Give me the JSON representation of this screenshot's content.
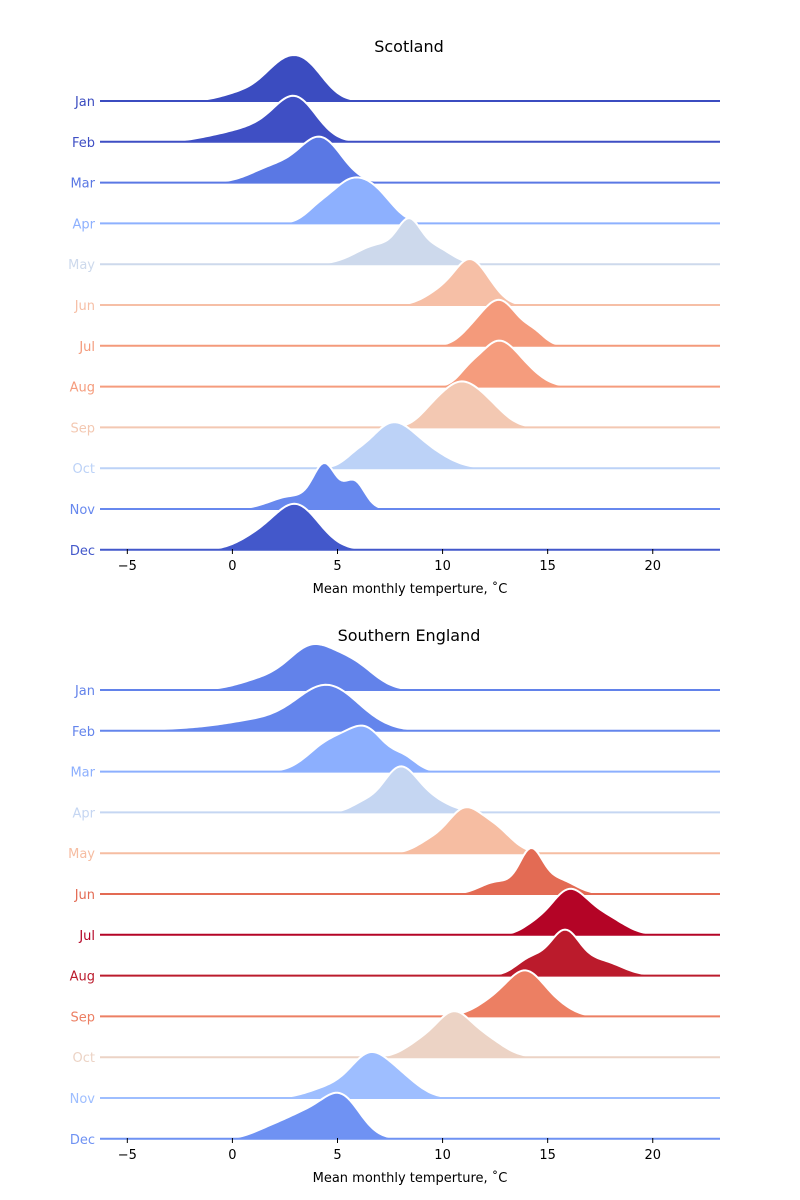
{
  "chart_data": [
    {
      "type": "ridgeline",
      "title": "Scotland",
      "xlabel": "Mean monthly temperture, ˚C",
      "xlim": [
        -6.3,
        23.2
      ],
      "xticks": [
        -5,
        0,
        5,
        10,
        15,
        20
      ],
      "xtick_labels": [
        "−5",
        "0",
        "5",
        "10",
        "15",
        "20"
      ],
      "rows": [
        {
          "name": "Jan",
          "color": "#3b4cc0",
          "components": [
            {
              "mean": 2.6,
              "sd": 1.1,
              "weight": 1.0
            },
            {
              "mean": 0.2,
              "sd": 0.9,
              "weight": 0.15
            },
            {
              "mean": 3.8,
              "sd": 0.8,
              "weight": 0.35
            }
          ]
        },
        {
          "name": "Feb",
          "color": "#3f4fc4",
          "components": [
            {
              "mean": 3.0,
              "sd": 1.0,
              "weight": 1.0
            },
            {
              "mean": 1.0,
              "sd": 1.2,
              "weight": 0.3
            },
            {
              "mean": -1.0,
              "sd": 1.0,
              "weight": 0.08
            }
          ]
        },
        {
          "name": "Mar",
          "color": "#5a78e4",
          "components": [
            {
              "mean": 4.2,
              "sd": 1.0,
              "weight": 1.0
            },
            {
              "mean": 2.0,
              "sd": 1.1,
              "weight": 0.35
            }
          ]
        },
        {
          "name": "Apr",
          "color": "#8db0fe",
          "components": [
            {
              "mean": 5.6,
              "sd": 1.0,
              "weight": 1.0
            },
            {
              "mean": 7.0,
              "sd": 0.8,
              "weight": 0.45
            },
            {
              "mean": 4.0,
              "sd": 0.6,
              "weight": 0.2
            }
          ]
        },
        {
          "name": "May",
          "color": "#cdd9ec",
          "components": [
            {
              "mean": 8.4,
              "sd": 0.55,
              "weight": 1.0
            },
            {
              "mean": 7.0,
              "sd": 1.1,
              "weight": 0.6
            },
            {
              "mean": 9.6,
              "sd": 0.8,
              "weight": 0.5
            }
          ]
        },
        {
          "name": "Jun",
          "color": "#f6bfa6",
          "components": [
            {
              "mean": 11.3,
              "sd": 0.7,
              "weight": 1.0
            },
            {
              "mean": 10.0,
              "sd": 0.8,
              "weight": 0.35
            },
            {
              "mean": 12.3,
              "sd": 0.6,
              "weight": 0.25
            }
          ]
        },
        {
          "name": "Jul",
          "color": "#f49a7b",
          "components": [
            {
              "mean": 12.7,
              "sd": 0.9,
              "weight": 1.0
            },
            {
              "mean": 14.4,
              "sd": 0.5,
              "weight": 0.2
            },
            {
              "mean": 11.3,
              "sd": 0.6,
              "weight": 0.15
            }
          ]
        },
        {
          "name": "Aug",
          "color": "#f59c7d",
          "components": [
            {
              "mean": 12.6,
              "sd": 0.9,
              "weight": 1.0
            },
            {
              "mean": 14.0,
              "sd": 0.8,
              "weight": 0.25
            },
            {
              "mean": 11.2,
              "sd": 0.5,
              "weight": 0.2
            }
          ]
        },
        {
          "name": "Sep",
          "color": "#f3c8b2",
          "components": [
            {
              "mean": 10.8,
              "sd": 1.0,
              "weight": 1.0
            },
            {
              "mean": 12.3,
              "sd": 0.8,
              "weight": 0.3
            },
            {
              "mean": 9.4,
              "sd": 0.6,
              "weight": 0.15
            }
          ]
        },
        {
          "name": "Oct",
          "color": "#bcd2f7",
          "components": [
            {
              "mean": 7.6,
              "sd": 1.1,
              "weight": 1.0
            },
            {
              "mean": 9.5,
              "sd": 1.0,
              "weight": 0.25
            },
            {
              "mean": 5.8,
              "sd": 0.5,
              "weight": 0.12
            }
          ]
        },
        {
          "name": "Nov",
          "color": "#6788ee",
          "components": [
            {
              "mean": 4.4,
              "sd": 0.55,
              "weight": 1.0
            },
            {
              "mean": 5.8,
              "sd": 0.5,
              "weight": 0.65
            },
            {
              "mean": 2.8,
              "sd": 1.0,
              "weight": 0.3
            }
          ]
        },
        {
          "name": "Dec",
          "color": "#4358cb",
          "components": [
            {
              "mean": 3.0,
              "sd": 1.1,
              "weight": 1.0
            },
            {
              "mean": 1.0,
              "sd": 0.9,
              "weight": 0.2
            }
          ]
        }
      ]
    },
    {
      "type": "ridgeline",
      "title": "Southern England",
      "xlabel": "Mean monthly temperture, ˚C",
      "xlim": [
        -6.3,
        23.2
      ],
      "xticks": [
        -5,
        0,
        5,
        10,
        15,
        20
      ],
      "xtick_labels": [
        "−5",
        "0",
        "5",
        "10",
        "15",
        "20"
      ],
      "rows": [
        {
          "name": "Jan",
          "color": "#6282ea",
          "components": [
            {
              "mean": 3.8,
              "sd": 1.1,
              "weight": 1.0
            },
            {
              "mean": 5.8,
              "sd": 1.0,
              "weight": 0.55
            },
            {
              "mean": 1.5,
              "sd": 1.2,
              "weight": 0.25
            }
          ]
        },
        {
          "name": "Feb",
          "color": "#6485ec",
          "components": [
            {
              "mean": 4.5,
              "sd": 1.5,
              "weight": 1.0
            },
            {
              "mean": 1.0,
              "sd": 1.5,
              "weight": 0.2
            },
            {
              "mean": -2.0,
              "sd": 1.5,
              "weight": 0.05
            }
          ]
        },
        {
          "name": "Mar",
          "color": "#8caffe",
          "components": [
            {
              "mean": 6.4,
              "sd": 0.9,
              "weight": 1.0
            },
            {
              "mean": 4.6,
              "sd": 1.0,
              "weight": 0.7
            },
            {
              "mean": 8.2,
              "sd": 0.6,
              "weight": 0.3
            }
          ]
        },
        {
          "name": "Apr",
          "color": "#c5d6f2",
          "components": [
            {
              "mean": 7.9,
              "sd": 0.8,
              "weight": 1.0
            },
            {
              "mean": 9.2,
              "sd": 1.0,
              "weight": 0.35
            },
            {
              "mean": 6.2,
              "sd": 0.6,
              "weight": 0.2
            }
          ]
        },
        {
          "name": "May",
          "color": "#f6bda2",
          "components": [
            {
              "mean": 11.0,
              "sd": 0.8,
              "weight": 1.0
            },
            {
              "mean": 12.5,
              "sd": 0.8,
              "weight": 0.55
            },
            {
              "mean": 9.4,
              "sd": 0.7,
              "weight": 0.25
            }
          ]
        },
        {
          "name": "Jun",
          "color": "#e36b54",
          "components": [
            {
              "mean": 14.2,
              "sd": 0.55,
              "weight": 1.0
            },
            {
              "mean": 15.5,
              "sd": 0.8,
              "weight": 0.35
            },
            {
              "mean": 12.6,
              "sd": 0.8,
              "weight": 0.3
            }
          ]
        },
        {
          "name": "Jul",
          "color": "#b40426",
          "components": [
            {
              "mean": 16.0,
              "sd": 0.9,
              "weight": 1.0
            },
            {
              "mean": 17.8,
              "sd": 0.9,
              "weight": 0.35
            },
            {
              "mean": 14.3,
              "sd": 0.6,
              "weight": 0.15
            }
          ]
        },
        {
          "name": "Aug",
          "color": "#bb1b2c",
          "components": [
            {
              "mean": 15.8,
              "sd": 0.7,
              "weight": 1.0
            },
            {
              "mean": 17.5,
              "sd": 1.0,
              "weight": 0.35
            },
            {
              "mean": 14.2,
              "sd": 0.7,
              "weight": 0.4
            }
          ]
        },
        {
          "name": "Sep",
          "color": "#ec7f63",
          "components": [
            {
              "mean": 14.0,
              "sd": 0.9,
              "weight": 1.0
            },
            {
              "mean": 12.4,
              "sd": 0.9,
              "weight": 0.3
            },
            {
              "mean": 15.6,
              "sd": 0.7,
              "weight": 0.15
            }
          ]
        },
        {
          "name": "Oct",
          "color": "#ecd3c5",
          "components": [
            {
              "mean": 10.5,
              "sd": 0.8,
              "weight": 1.0
            },
            {
              "mean": 12.0,
              "sd": 0.9,
              "weight": 0.45
            },
            {
              "mean": 9.0,
              "sd": 0.8,
              "weight": 0.35
            }
          ]
        },
        {
          "name": "Nov",
          "color": "#9ebeff",
          "components": [
            {
              "mean": 6.5,
              "sd": 0.9,
              "weight": 1.0
            },
            {
              "mean": 8.0,
              "sd": 0.9,
              "weight": 0.45
            },
            {
              "mean": 4.6,
              "sd": 1.0,
              "weight": 0.25
            }
          ]
        },
        {
          "name": "Dec",
          "color": "#6f92f3",
          "components": [
            {
              "mean": 5.2,
              "sd": 0.9,
              "weight": 1.0
            },
            {
              "mean": 3.4,
              "sd": 1.1,
              "weight": 0.6
            },
            {
              "mean": 1.6,
              "sd": 0.8,
              "weight": 0.15
            }
          ]
        }
      ]
    }
  ]
}
